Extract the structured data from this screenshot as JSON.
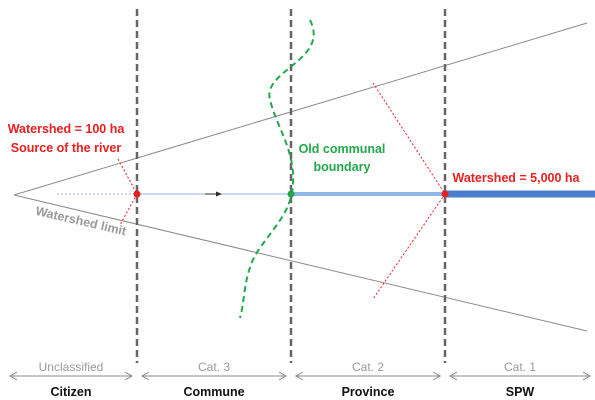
{
  "labels": {
    "watershed_100": "Watershed = 100 ha",
    "source": "Source of the river",
    "watershed_limit": "Watershed limit",
    "old_boundary_line1": "Old communal",
    "old_boundary_line2": "boundary",
    "watershed_5000": "Watershed = 5,000 ha"
  },
  "categories": [
    {
      "name": "Unclassified",
      "authority": "Citizen"
    },
    {
      "name": "Cat. 3",
      "authority": "Commune"
    },
    {
      "name": "Cat. 2",
      "authority": "Province"
    },
    {
      "name": "Cat. 1",
      "authority": "SPW"
    }
  ],
  "colors": {
    "red": "#e8201f",
    "green": "#22a84b",
    "river_blue": "#4a7fd0",
    "river_light_blue": "#8fb6e6",
    "dashed_gray": "#666666",
    "outline_gray": "#8a8a8a",
    "label_gray": "#9a9a9a"
  }
}
